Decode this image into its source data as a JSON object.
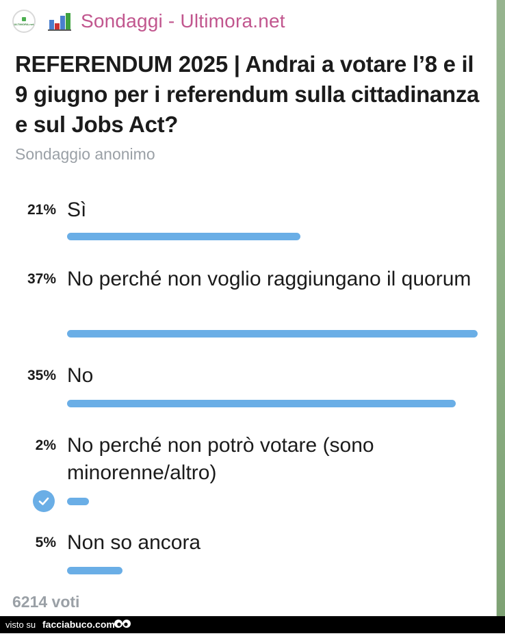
{
  "header": {
    "avatar_text": "ULTIMORA.net",
    "channel_name": "Sondaggi - Ultimora.net"
  },
  "poll": {
    "question": "REFERENDUM 2025 | Andrai a votare l’8 e il 9 giugno per i referendum sulla cittadinanza e sul Jobs Act?",
    "type": "Sondaggio anonimo",
    "options": [
      {
        "percent": "21%",
        "label": "Sì",
        "value": 0.21,
        "chosen": false
      },
      {
        "percent": "37%",
        "label": "No perché non voglio raggiungano il quorum",
        "value": 0.37,
        "chosen": false
      },
      {
        "percent": "35%",
        "label": "No",
        "value": 0.35,
        "chosen": false
      },
      {
        "percent": "2%",
        "label": "No perché non potrò votare (sono minorenne/altro)",
        "value": 0.02,
        "chosen": true
      },
      {
        "percent": "5%",
        "label": "Non so ancora",
        "value": 0.05,
        "chosen": false
      }
    ],
    "votes": "6214 voti",
    "bar_color": "#6aaee6"
  },
  "footer": {
    "prefix": "visto su",
    "site": "facciabuco.com"
  },
  "colors": {
    "channel_name": "#c1568e",
    "bar": "#6aaee6",
    "muted": "#9aa0a6"
  }
}
